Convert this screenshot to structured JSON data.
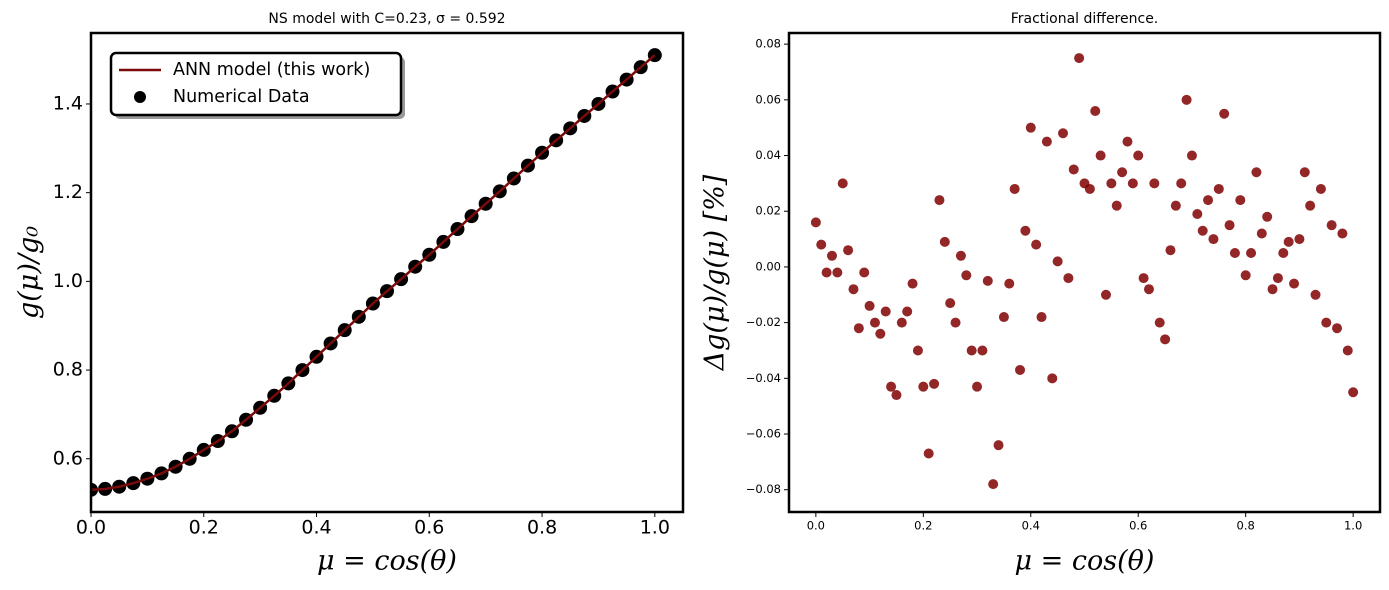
{
  "chart_data": [
    {
      "type": "line",
      "title": "NS model with C=0.23, σ = 0.592",
      "x_label": "μ = cos(θ)",
      "y_label": "g(μ)/g₀",
      "x": [
        0,
        0.025,
        0.05,
        0.075,
        0.1,
        0.125,
        0.15,
        0.175,
        0.2,
        0.225,
        0.25,
        0.275,
        0.3,
        0.325,
        0.35,
        0.375,
        0.4,
        0.425,
        0.45,
        0.475,
        0.5,
        0.525,
        0.55,
        0.575,
        0.6,
        0.625,
        0.65,
        0.675,
        0.7,
        0.725,
        0.75,
        0.775,
        0.8,
        0.825,
        0.85,
        0.875,
        0.9,
        0.925,
        0.95,
        0.975,
        1.0
      ],
      "series": [
        {
          "name": "ANN model (this work)",
          "type": "line",
          "color": "#7b0a0a",
          "values": [
            0.53,
            0.532,
            0.537,
            0.545,
            0.555,
            0.567,
            0.582,
            0.6,
            0.62,
            0.64,
            0.662,
            0.688,
            0.715,
            0.742,
            0.77,
            0.8,
            0.83,
            0.86,
            0.89,
            0.92,
            0.95,
            0.978,
            1.005,
            1.033,
            1.06,
            1.089,
            1.118,
            1.147,
            1.175,
            1.203,
            1.232,
            1.261,
            1.29,
            1.318,
            1.345,
            1.373,
            1.4,
            1.428,
            1.455,
            1.483,
            1.51
          ]
        },
        {
          "name": "Numerical Data",
          "type": "scatter",
          "color": "#000000",
          "values": [
            0.53,
            0.532,
            0.537,
            0.545,
            0.555,
            0.567,
            0.582,
            0.6,
            0.62,
            0.64,
            0.662,
            0.688,
            0.715,
            0.742,
            0.77,
            0.8,
            0.83,
            0.86,
            0.89,
            0.92,
            0.95,
            0.978,
            1.005,
            1.033,
            1.06,
            1.089,
            1.118,
            1.147,
            1.175,
            1.203,
            1.232,
            1.261,
            1.29,
            1.318,
            1.345,
            1.373,
            1.4,
            1.428,
            1.455,
            1.483,
            1.51
          ]
        }
      ],
      "xlim": [
        0,
        1.05
      ],
      "ylim": [
        0.48,
        1.56
      ],
      "xticks": [
        {
          "value": 0,
          "label": "0.0"
        },
        0.2,
        0.4,
        0.6,
        0.8,
        {
          "value": 1,
          "label": "1.0"
        }
      ],
      "yticks": [
        0.6,
        0.8,
        {
          "value": 1,
          "label": "1.0"
        },
        1.2,
        1.4
      ],
      "legend": "upper left"
    },
    {
      "type": "scatter",
      "title": "Fractional difference.",
      "x_label": "μ = cos(θ)",
      "y_label": "Δg(μ)/g(μ)  [%]",
      "color": "#800000",
      "x": [
        0,
        0.01,
        0.02,
        0.03,
        0.04,
        0.05,
        0.06,
        0.07,
        0.08,
        0.09,
        0.1,
        0.11,
        0.12,
        0.13,
        0.14,
        0.15,
        0.16,
        0.17,
        0.18,
        0.19,
        0.2,
        0.21,
        0.22,
        0.23,
        0.24,
        0.25,
        0.26,
        0.27,
        0.28,
        0.29,
        0.3,
        0.31,
        0.32,
        0.33,
        0.34,
        0.35,
        0.36,
        0.37,
        0.38,
        0.39,
        0.4,
        0.41,
        0.42,
        0.43,
        0.44,
        0.45,
        0.46,
        0.47,
        0.48,
        0.49,
        0.5,
        0.51,
        0.52,
        0.53,
        0.54,
        0.55,
        0.56,
        0.57,
        0.58,
        0.59,
        0.6,
        0.61,
        0.62,
        0.63,
        0.64,
        0.65,
        0.66,
        0.67,
        0.68,
        0.69,
        0.7,
        0.71,
        0.72,
        0.73,
        0.74,
        0.75,
        0.76,
        0.77,
        0.78,
        0.79,
        0.8,
        0.81,
        0.82,
        0.83,
        0.84,
        0.85,
        0.86,
        0.87,
        0.88,
        0.89,
        0.9,
        0.91,
        0.92,
        0.93,
        0.94,
        0.95,
        0.96,
        0.97,
        0.98,
        0.99,
        1.0
      ],
      "values": [
        0.016,
        0.008,
        -0.002,
        0.004,
        -0.002,
        0.03,
        0.006,
        -0.008,
        -0.022,
        -0.002,
        -0.014,
        -0.02,
        -0.024,
        -0.016,
        -0.043,
        -0.046,
        -0.02,
        -0.016,
        -0.006,
        -0.03,
        -0.043,
        -0.067,
        -0.042,
        0.024,
        0.009,
        -0.013,
        -0.02,
        0.004,
        -0.003,
        -0.03,
        -0.043,
        -0.03,
        -0.005,
        -0.078,
        -0.064,
        -0.018,
        -0.006,
        0.028,
        -0.037,
        0.013,
        0.05,
        0.008,
        -0.018,
        0.045,
        -0.04,
        0.002,
        0.048,
        -0.004,
        0.035,
        0.075,
        0.03,
        0.028,
        0.056,
        0.04,
        -0.01,
        0.03,
        0.022,
        0.034,
        0.045,
        0.03,
        0.04,
        -0.004,
        -0.008,
        0.03,
        -0.02,
        -0.026,
        0.006,
        0.022,
        0.03,
        0.06,
        0.04,
        0.019,
        0.013,
        0.024,
        0.01,
        0.028,
        0.055,
        0.015,
        0.005,
        0.024,
        -0.003,
        0.005,
        0.034,
        0.012,
        0.018,
        -0.008,
        -0.004,
        0.005,
        0.009,
        -0.006,
        0.01,
        0.034,
        0.022,
        -0.01,
        0.028,
        -0.02,
        0.015,
        -0.022,
        0.012,
        -0.03,
        -0.045
      ],
      "xlim": [
        -0.05,
        1.05
      ],
      "ylim": [
        -0.088,
        0.084
      ],
      "xticks": [
        {
          "value": 0,
          "label": "0.0"
        },
        0.2,
        0.4,
        0.6,
        0.8,
        {
          "value": 1,
          "label": "1.0"
        }
      ],
      "yticks": [
        {
          "value": -0.08,
          "label": "−0.08"
        },
        {
          "value": -0.06,
          "label": "−0.06"
        },
        {
          "value": -0.04,
          "label": "−0.04"
        },
        {
          "value": -0.02,
          "label": "−0.02"
        },
        {
          "value": 0,
          "label": "0.00"
        },
        0.02,
        0.04,
        0.06,
        0.08
      ]
    }
  ]
}
